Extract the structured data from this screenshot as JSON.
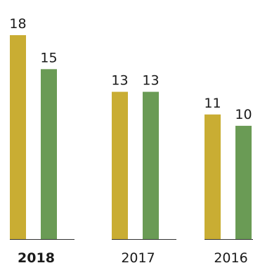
{
  "chart_data": {
    "type": "bar",
    "categories": [
      "2018",
      "2017",
      "2016"
    ],
    "emphasized_category": "2018",
    "series": [
      {
        "values": [
          18,
          13,
          11
        ],
        "color": "#c9ad33"
      },
      {
        "values": [
          15,
          13,
          10
        ],
        "color": "#6a9b55"
      }
    ],
    "ylim": [
      0,
      18
    ],
    "grid": false,
    "baseline_color": "#333333"
  }
}
